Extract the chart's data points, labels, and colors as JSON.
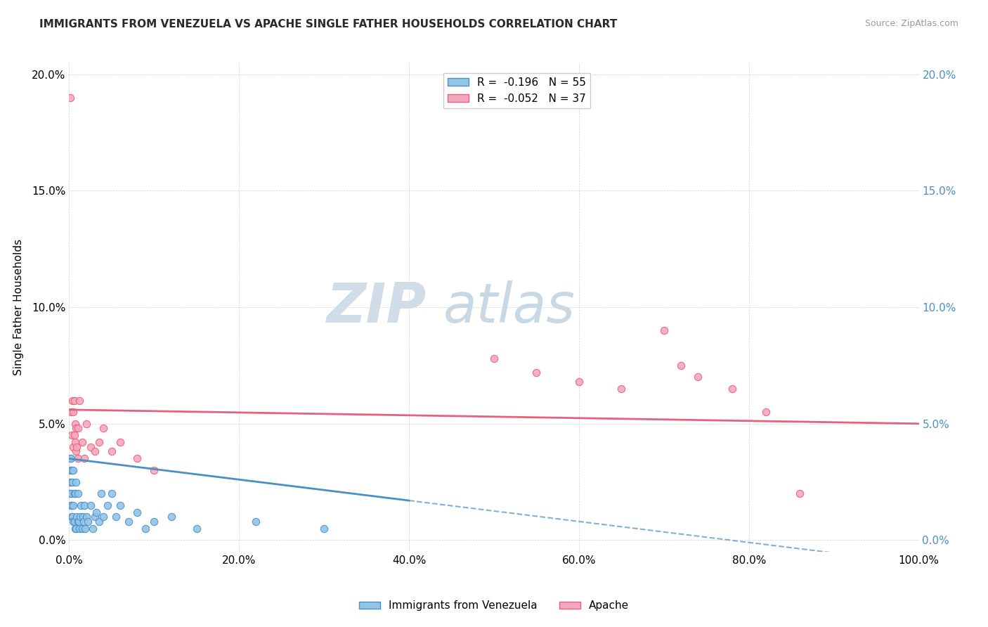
{
  "title": "IMMIGRANTS FROM VENEZUELA VS APACHE SINGLE FATHER HOUSEHOLDS CORRELATION CHART",
  "source": "Source: ZipAtlas.com",
  "ylabel": "Single Father Households",
  "xlim": [
    0,
    1.0
  ],
  "ylim": [
    -0.005,
    0.205
  ],
  "x_ticks": [
    0.0,
    0.2,
    0.4,
    0.6,
    0.8,
    1.0
  ],
  "x_tick_labels": [
    "0.0%",
    "20.0%",
    "40.0%",
    "60.0%",
    "80.0%",
    "100.0%"
  ],
  "y_ticks": [
    0.0,
    0.05,
    0.1,
    0.15,
    0.2
  ],
  "y_tick_labels": [
    "0.0%",
    "5.0%",
    "10.0%",
    "15.0%",
    "20.0%"
  ],
  "right_y_tick_labels": [
    "0.0%",
    "5.0%",
    "10.0%",
    "15.0%",
    "20.0%"
  ],
  "legend_r1": "R =  -0.196",
  "legend_n1": "N = 55",
  "legend_r2": "R =  -0.052",
  "legend_n2": "N = 37",
  "color_blue": "#92C5E8",
  "color_pink": "#F4A8BE",
  "color_blue_dark": "#4A90C4",
  "color_pink_dark": "#E8607A",
  "blue_scatter_x": [
    0.001,
    0.001,
    0.001,
    0.001,
    0.002,
    0.002,
    0.002,
    0.002,
    0.003,
    0.003,
    0.003,
    0.004,
    0.004,
    0.005,
    0.005,
    0.005,
    0.006,
    0.006,
    0.007,
    0.007,
    0.008,
    0.008,
    0.009,
    0.01,
    0.01,
    0.011,
    0.012,
    0.013,
    0.014,
    0.015,
    0.016,
    0.017,
    0.018,
    0.019,
    0.02,
    0.022,
    0.025,
    0.028,
    0.03,
    0.032,
    0.035,
    0.038,
    0.04,
    0.045,
    0.05,
    0.055,
    0.06,
    0.07,
    0.08,
    0.09,
    0.1,
    0.12,
    0.15,
    0.22,
    0.3
  ],
  "blue_scatter_y": [
    0.02,
    0.025,
    0.03,
    0.035,
    0.015,
    0.02,
    0.025,
    0.035,
    0.01,
    0.015,
    0.03,
    0.01,
    0.025,
    0.008,
    0.015,
    0.03,
    0.008,
    0.02,
    0.005,
    0.02,
    0.005,
    0.025,
    0.01,
    0.008,
    0.02,
    0.008,
    0.005,
    0.01,
    0.015,
    0.005,
    0.01,
    0.008,
    0.015,
    0.005,
    0.01,
    0.008,
    0.015,
    0.005,
    0.01,
    0.012,
    0.008,
    0.02,
    0.01,
    0.015,
    0.02,
    0.01,
    0.015,
    0.008,
    0.012,
    0.005,
    0.008,
    0.01,
    0.005,
    0.008,
    0.005
  ],
  "pink_scatter_x": [
    0.001,
    0.002,
    0.003,
    0.004,
    0.005,
    0.005,
    0.006,
    0.006,
    0.007,
    0.007,
    0.008,
    0.008,
    0.009,
    0.01,
    0.01,
    0.012,
    0.015,
    0.018,
    0.02,
    0.025,
    0.03,
    0.035,
    0.04,
    0.05,
    0.06,
    0.08,
    0.1,
    0.5,
    0.55,
    0.6,
    0.65,
    0.7,
    0.72,
    0.74,
    0.78,
    0.82,
    0.86
  ],
  "pink_scatter_y": [
    0.19,
    0.055,
    0.045,
    0.06,
    0.04,
    0.055,
    0.045,
    0.06,
    0.042,
    0.05,
    0.038,
    0.048,
    0.04,
    0.035,
    0.048,
    0.06,
    0.042,
    0.035,
    0.05,
    0.04,
    0.038,
    0.042,
    0.048,
    0.038,
    0.042,
    0.035,
    0.03,
    0.078,
    0.072,
    0.068,
    0.065,
    0.09,
    0.075,
    0.07,
    0.065,
    0.055,
    0.02
  ],
  "blue_line_solid_end": 0.4,
  "blue_line_start_y": 0.035,
  "blue_line_end_y": -0.01,
  "pink_line_start_y": 0.056,
  "pink_line_end_y": 0.05
}
